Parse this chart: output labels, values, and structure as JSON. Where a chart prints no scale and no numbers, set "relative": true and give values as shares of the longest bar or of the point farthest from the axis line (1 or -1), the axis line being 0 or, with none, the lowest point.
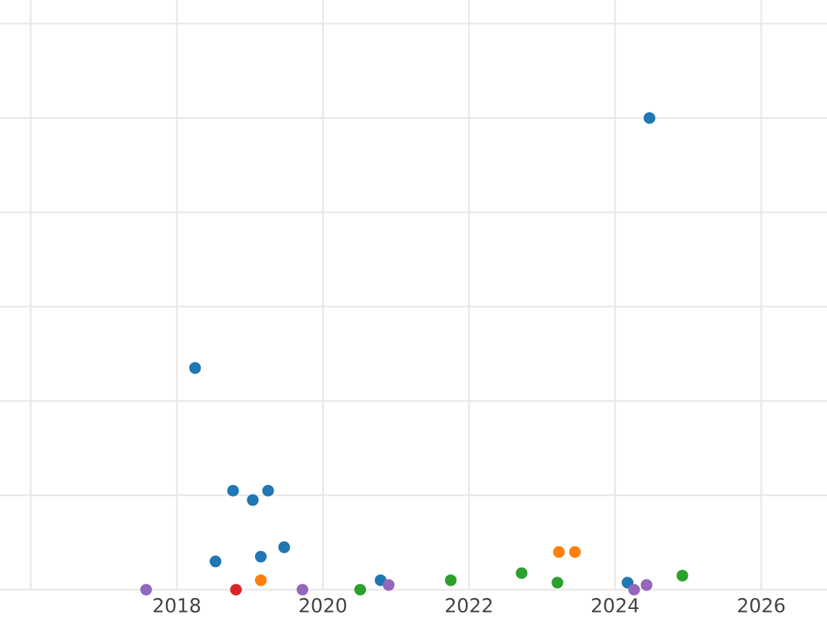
{
  "chart_data": {
    "type": "scatter",
    "relative": true,
    "grid": true,
    "marker": "circle",
    "tick_labels": "x",
    "xlim": [
      2015.58,
      2026.9
    ],
    "xticks": [
      {
        "value": 2016,
        "label": null
      },
      2018,
      2020,
      2022,
      2024,
      2026
    ],
    "series": [
      {
        "color": "#1f77b4",
        "x": [
          2024.47,
          2018.25,
          2018.77,
          2019.04,
          2019.25,
          2019.47,
          2018.53,
          2019.15,
          2020.79,
          2024.17
        ],
        "values": [
          1.0,
          0.47,
          0.21,
          0.19,
          0.21,
          0.09,
          0.06,
          0.07,
          0.02,
          0.015
        ]
      },
      {
        "color": "#9467bd",
        "x": [
          2017.58,
          2019.72,
          2020.9,
          2024.26,
          2024.43
        ],
        "values": [
          0,
          0,
          0.01,
          0,
          0.01
        ]
      },
      {
        "color": "#d62728",
        "x": [
          2018.81
        ],
        "values": [
          0
        ]
      },
      {
        "color": "#ff7f0e",
        "x": [
          2019.15,
          2023.23,
          2023.45
        ],
        "values": [
          0.02,
          0.08,
          0.08
        ]
      },
      {
        "color": "#2ca02c",
        "x": [
          2020.51,
          2021.75,
          2022.72,
          2023.21,
          2024.92
        ],
        "values": [
          0,
          0.02,
          0.035,
          0.015,
          0.03
        ]
      }
    ]
  }
}
